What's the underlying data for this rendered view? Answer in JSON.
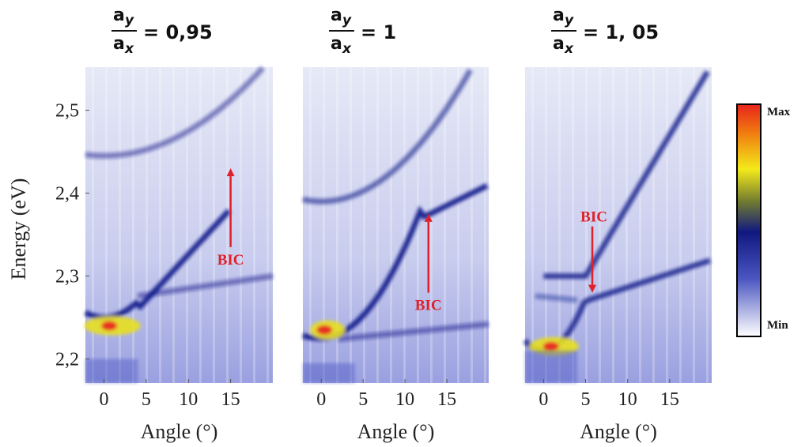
{
  "chart_data": [
    {
      "type": "heatmap",
      "title": {
        "numerator": "a",
        "numerator_sub": "y",
        "denominator": "a",
        "denominator_sub": "x",
        "value_text": "= 0,95"
      },
      "xlabel": "Angle (°)",
      "ylabel": "Energy (eV)",
      "annotation": "BIC",
      "xlim": [
        -2.2,
        20
      ],
      "xticks": [
        0,
        5,
        10,
        15
      ],
      "ylim": [
        2.171,
        2.552
      ],
      "yticks": [
        {
          "value": 2.2,
          "label": "2,2"
        },
        {
          "value": 2.3,
          "label": "2,3"
        },
        {
          "value": 2.4,
          "label": "2,4"
        },
        {
          "value": 2.5,
          "label": "2,5"
        }
      ]
    },
    {
      "type": "heatmap",
      "title": {
        "numerator": "a",
        "numerator_sub": "y",
        "denominator": "a",
        "denominator_sub": "x",
        "value_text": "= 1"
      },
      "xlabel": "Angle (°)",
      "annotation": "BIC",
      "xlim": [
        -2.2,
        20
      ],
      "xticks": [
        0,
        5,
        10,
        15
      ],
      "ylim": [
        2.171,
        2.552
      ]
    },
    {
      "type": "heatmap",
      "title": {
        "numerator": "a",
        "numerator_sub": "y",
        "denominator": "a",
        "denominator_sub": "x",
        "value_text": "= 1, 05"
      },
      "xlabel": "Angle (°)",
      "annotation": "BIC",
      "xlim": [
        -2.2,
        20
      ],
      "xticks": [
        0,
        5,
        10,
        15
      ],
      "ylim": [
        2.171,
        2.552
      ]
    }
  ],
  "colorbar": {
    "max_label": "Max",
    "min_label": "Min"
  }
}
